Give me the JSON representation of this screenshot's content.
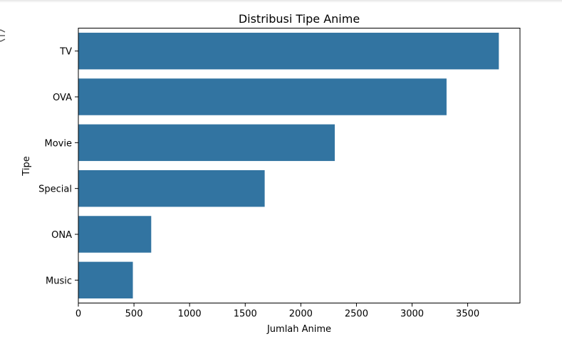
{
  "output_cell": {
    "toolbar_icon": "output-menu-icon"
  },
  "chart_data": {
    "type": "bar",
    "orientation": "horizontal",
    "title": "Distribusi Tipe Anime",
    "xlabel": "Jumlah Anime",
    "ylabel": "Tipe",
    "categories": [
      "TV",
      "OVA",
      "Movie",
      "Special",
      "ONA",
      "Music"
    ],
    "values": [
      3780,
      3310,
      2305,
      1675,
      655,
      490
    ],
    "xlim": [
      0,
      3970
    ],
    "xticks": [
      0,
      500,
      1000,
      1500,
      2000,
      2500,
      3000,
      3500
    ],
    "grid": false,
    "legend": "none",
    "bar_color": "#3274a1"
  }
}
